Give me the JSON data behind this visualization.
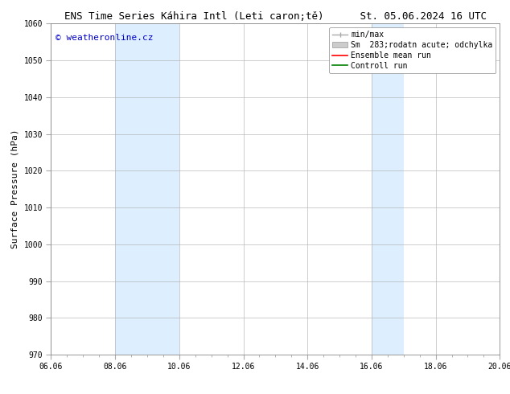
{
  "title": "ENS Time Series Káhira Intl (Leti caron;tě)",
  "title_right": "St. 05.06.2024 16 UTC",
  "ylabel": "Surface Pressure (hPa)",
  "ylim": [
    970,
    1060
  ],
  "yticks": [
    970,
    980,
    990,
    1000,
    1010,
    1020,
    1030,
    1040,
    1050,
    1060
  ],
  "xticks": [
    "06.06",
    "08.06",
    "10.06",
    "12.06",
    "14.06",
    "16.06",
    "18.06",
    "20.06"
  ],
  "xtick_positions": [
    0,
    2,
    4,
    6,
    8,
    10,
    12,
    14
  ],
  "shaded_regions": [
    {
      "x_start": 2,
      "x_end": 4,
      "color": "#ddeeff"
    },
    {
      "x_start": 10,
      "x_end": 11,
      "color": "#ddeeff"
    }
  ],
  "watermark": "© weatheronline.cz",
  "watermark_color": "#0000cc",
  "background_color": "#ffffff",
  "grid_color": "#aaaaaa",
  "font_size_title": 9,
  "font_size_axis": 8,
  "font_size_ticks": 7,
  "font_size_legend": 7,
  "font_size_watermark": 8,
  "legend_min_max_color": "#aaaaaa",
  "legend_spread_color": "#cccccc",
  "legend_mean_color": "#ff0000",
  "legend_control_color": "#008000"
}
